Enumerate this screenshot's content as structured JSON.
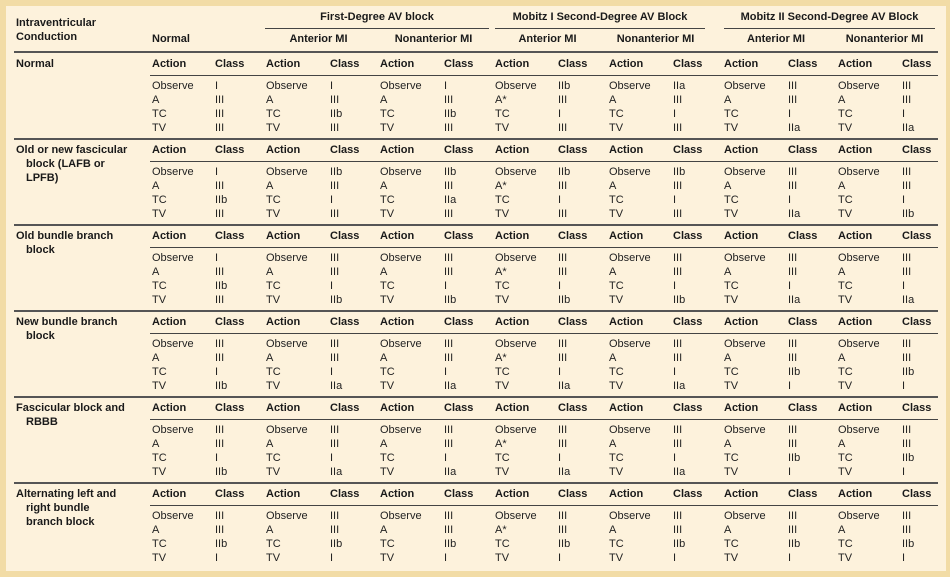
{
  "header": {
    "corner": [
      "Intraventricular",
      "Conduction"
    ],
    "normal": "Normal",
    "groups": [
      "First-Degree AV block",
      "Mobitz I Second-Degree AV Block",
      "Mobitz II Second-Degree AV Block"
    ],
    "subgroups": [
      "Anterior MI",
      "Nonanterior MI",
      "Anterior MI",
      "Nonanterior MI",
      "Anterior MI",
      "Nonanterior MI"
    ],
    "action_label": "Action",
    "class_label": "Class"
  },
  "rows": [
    {
      "label": [
        "Normal"
      ],
      "actions": [
        "Observe",
        "A",
        "TC",
        "TV"
      ],
      "mobitz1_anterior_actions": [
        "Observe",
        "A*",
        "TC",
        "TV"
      ],
      "classes": [
        [
          "I",
          "III",
          "III",
          "III"
        ],
        [
          "I",
          "III",
          "IIb",
          "III"
        ],
        [
          "I",
          "III",
          "IIb",
          "III"
        ],
        [
          "IIb",
          "III",
          "I",
          "III"
        ],
        [
          "IIa",
          "III",
          "I",
          "III"
        ],
        [
          "III",
          "III",
          "I",
          "IIa"
        ],
        [
          "III",
          "III",
          "I",
          "IIa"
        ]
      ]
    },
    {
      "label": [
        "Old or new fascicular",
        "block (LAFB or",
        "LPFB)"
      ],
      "actions": [
        "Observe",
        "A",
        "TC",
        "TV"
      ],
      "mobitz1_anterior_actions": [
        "Observe",
        "A*",
        "TC",
        "TV"
      ],
      "classes": [
        [
          "I",
          "III",
          "IIb",
          "III"
        ],
        [
          "IIb",
          "III",
          "I",
          "III"
        ],
        [
          "IIb",
          "III",
          "IIa",
          "III"
        ],
        [
          "IIb",
          "III",
          "I",
          "III"
        ],
        [
          "IIb",
          "III",
          "I",
          "III"
        ],
        [
          "III",
          "III",
          "I",
          "IIa"
        ],
        [
          "III",
          "III",
          "I",
          "IIb"
        ]
      ]
    },
    {
      "label": [
        "Old bundle branch",
        "block"
      ],
      "actions": [
        "Observe",
        "A",
        "TC",
        "TV"
      ],
      "mobitz1_anterior_actions": [
        "Observe",
        "A*",
        "TC",
        "TV"
      ],
      "classes": [
        [
          "I",
          "III",
          "IIb",
          "III"
        ],
        [
          "III",
          "III",
          "I",
          "IIb"
        ],
        [
          "III",
          "III",
          "I",
          "IIb"
        ],
        [
          "III",
          "III",
          "I",
          "IIb"
        ],
        [
          "III",
          "III",
          "I",
          "IIb"
        ],
        [
          "III",
          "III",
          "I",
          "IIa"
        ],
        [
          "III",
          "III",
          "I",
          "IIa"
        ]
      ]
    },
    {
      "label": [
        "New bundle branch",
        "block"
      ],
      "actions": [
        "Observe",
        "A",
        "TC",
        "TV"
      ],
      "mobitz1_anterior_actions": [
        "Observe",
        "A*",
        "TC",
        "TV"
      ],
      "classes": [
        [
          "III",
          "III",
          "I",
          "IIb"
        ],
        [
          "III",
          "III",
          "I",
          "IIa"
        ],
        [
          "III",
          "III",
          "I",
          "IIa"
        ],
        [
          "III",
          "III",
          "I",
          "IIa"
        ],
        [
          "III",
          "III",
          "I",
          "IIa"
        ],
        [
          "III",
          "III",
          "IIb",
          "I"
        ],
        [
          "III",
          "III",
          "IIb",
          "I"
        ]
      ]
    },
    {
      "label": [
        "Fascicular block and",
        "RBBB"
      ],
      "actions": [
        "Observe",
        "A",
        "TC",
        "TV"
      ],
      "mobitz1_anterior_actions": [
        "Observe",
        "A*",
        "TC",
        "TV"
      ],
      "classes": [
        [
          "III",
          "III",
          "I",
          "IIb"
        ],
        [
          "III",
          "III",
          "I",
          "IIa"
        ],
        [
          "III",
          "III",
          "I",
          "IIa"
        ],
        [
          "III",
          "III",
          "I",
          "IIa"
        ],
        [
          "III",
          "III",
          "I",
          "IIa"
        ],
        [
          "III",
          "III",
          "IIb",
          "I"
        ],
        [
          "III",
          "III",
          "IIb",
          "I"
        ]
      ]
    },
    {
      "label": [
        "Alternating left and",
        "right bundle",
        "branch block"
      ],
      "actions": [
        "Observe",
        "A",
        "TC",
        "TV"
      ],
      "mobitz1_anterior_actions": [
        "Observe",
        "A*",
        "TC",
        "TV"
      ],
      "classes": [
        [
          "III",
          "III",
          "IIb",
          "I"
        ],
        [
          "III",
          "III",
          "IIb",
          "I"
        ],
        [
          "III",
          "III",
          "IIb",
          "I"
        ],
        [
          "III",
          "III",
          "IIb",
          "I"
        ],
        [
          "III",
          "III",
          "IIb",
          "I"
        ],
        [
          "III",
          "III",
          "IIb",
          "I"
        ],
        [
          "III",
          "III",
          "IIb",
          "I"
        ]
      ]
    }
  ]
}
